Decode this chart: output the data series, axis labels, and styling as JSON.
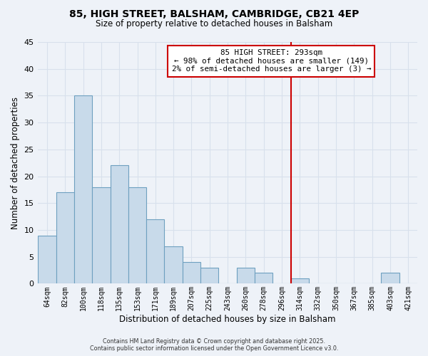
{
  "title": "85, HIGH STREET, BALSHAM, CAMBRIDGE, CB21 4EP",
  "subtitle": "Size of property relative to detached houses in Balsham",
  "xlabel": "Distribution of detached houses by size in Balsham",
  "ylabel": "Number of detached properties",
  "bar_color": "#c8daea",
  "bar_edge_color": "#6ea0c0",
  "background_color": "#eef2f8",
  "grid_color": "#d8e0ec",
  "bin_labels": [
    "64sqm",
    "82sqm",
    "100sqm",
    "118sqm",
    "135sqm",
    "153sqm",
    "171sqm",
    "189sqm",
    "207sqm",
    "225sqm",
    "243sqm",
    "260sqm",
    "278sqm",
    "296sqm",
    "314sqm",
    "332sqm",
    "350sqm",
    "367sqm",
    "385sqm",
    "403sqm",
    "421sqm"
  ],
  "bar_heights": [
    9,
    17,
    35,
    18,
    22,
    18,
    12,
    7,
    4,
    3,
    0,
    3,
    2,
    0,
    1,
    0,
    0,
    0,
    0,
    2,
    0
  ],
  "ylim": [
    0,
    45
  ],
  "yticks": [
    0,
    5,
    10,
    15,
    20,
    25,
    30,
    35,
    40,
    45
  ],
  "vline_x_index": 13.5,
  "vline_color": "#cc0000",
  "annotation_title": "85 HIGH STREET: 293sqm",
  "annotation_line1": "← 98% of detached houses are smaller (149)",
  "annotation_line2": "2% of semi-detached houses are larger (3) →",
  "footer_line1": "Contains HM Land Registry data © Crown copyright and database right 2025.",
  "footer_line2": "Contains public sector information licensed under the Open Government Licence v3.0."
}
